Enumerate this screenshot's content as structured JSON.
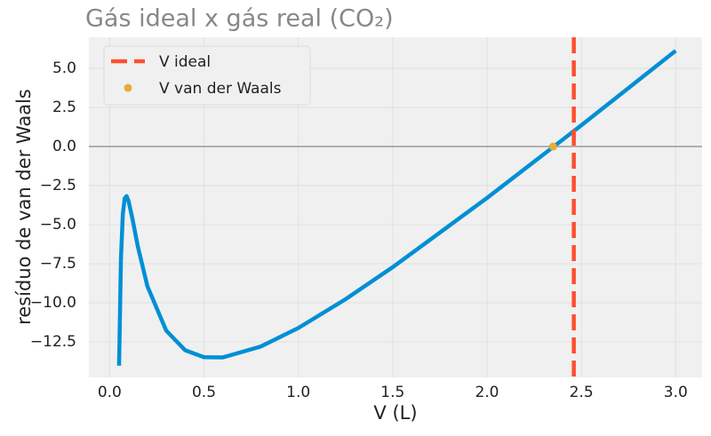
{
  "chart_data": {
    "type": "line",
    "title": "Gás ideal x gás real (CO₂)",
    "x_label": "V (L)",
    "y_label": "resíduo de van der Waals",
    "x": [
      0.05,
      0.06,
      0.07,
      0.08,
      0.09,
      0.1,
      0.12,
      0.15,
      0.2,
      0.3,
      0.4,
      0.5,
      0.6,
      0.8,
      1.0,
      1.25,
      1.5,
      2.0,
      2.5,
      3.0
    ],
    "values": [
      -14.02,
      -7.17,
      -4.32,
      -3.31,
      -3.17,
      -3.47,
      -4.57,
      -6.42,
      -8.93,
      -11.78,
      -13.03,
      -13.48,
      -13.49,
      -12.8,
      -11.61,
      -9.77,
      -7.72,
      -3.29,
      1.36,
      6.13
    ],
    "color": "#008fd5",
    "vline": {
      "name": "V ideal",
      "x": 2.46,
      "color": "#fc4f30"
    },
    "point": {
      "name": "V van der Waals",
      "x": 2.35,
      "y": 0,
      "color": "#e5ae38"
    },
    "hline": 0,
    "xlim": [
      -0.11,
      3.14
    ],
    "ylim": [
      -14.77,
      6.99
    ],
    "xticks": [
      {
        "value": 0,
        "label": "0.0"
      },
      {
        "value": 0.5,
        "label": "0.5"
      },
      {
        "value": 1,
        "label": "1.0"
      },
      {
        "value": 1.5,
        "label": "1.5"
      },
      {
        "value": 2,
        "label": "2.0"
      },
      {
        "value": 2.5,
        "label": "2.5"
      },
      {
        "value": 3,
        "label": "3.0"
      }
    ],
    "yticks": [
      {
        "value": -12.5,
        "label": "−12.5"
      },
      {
        "value": -10,
        "label": "−10.0"
      },
      {
        "value": -7.5,
        "label": "−7.5"
      },
      {
        "value": -5,
        "label": "−5.0"
      },
      {
        "value": -2.5,
        "label": "−2.5"
      },
      {
        "value": 0,
        "label": "0.0"
      },
      {
        "value": 2.5,
        "label": "2.5"
      },
      {
        "value": 5,
        "label": "5.0"
      }
    ],
    "grid": true,
    "legend": "upper left"
  }
}
